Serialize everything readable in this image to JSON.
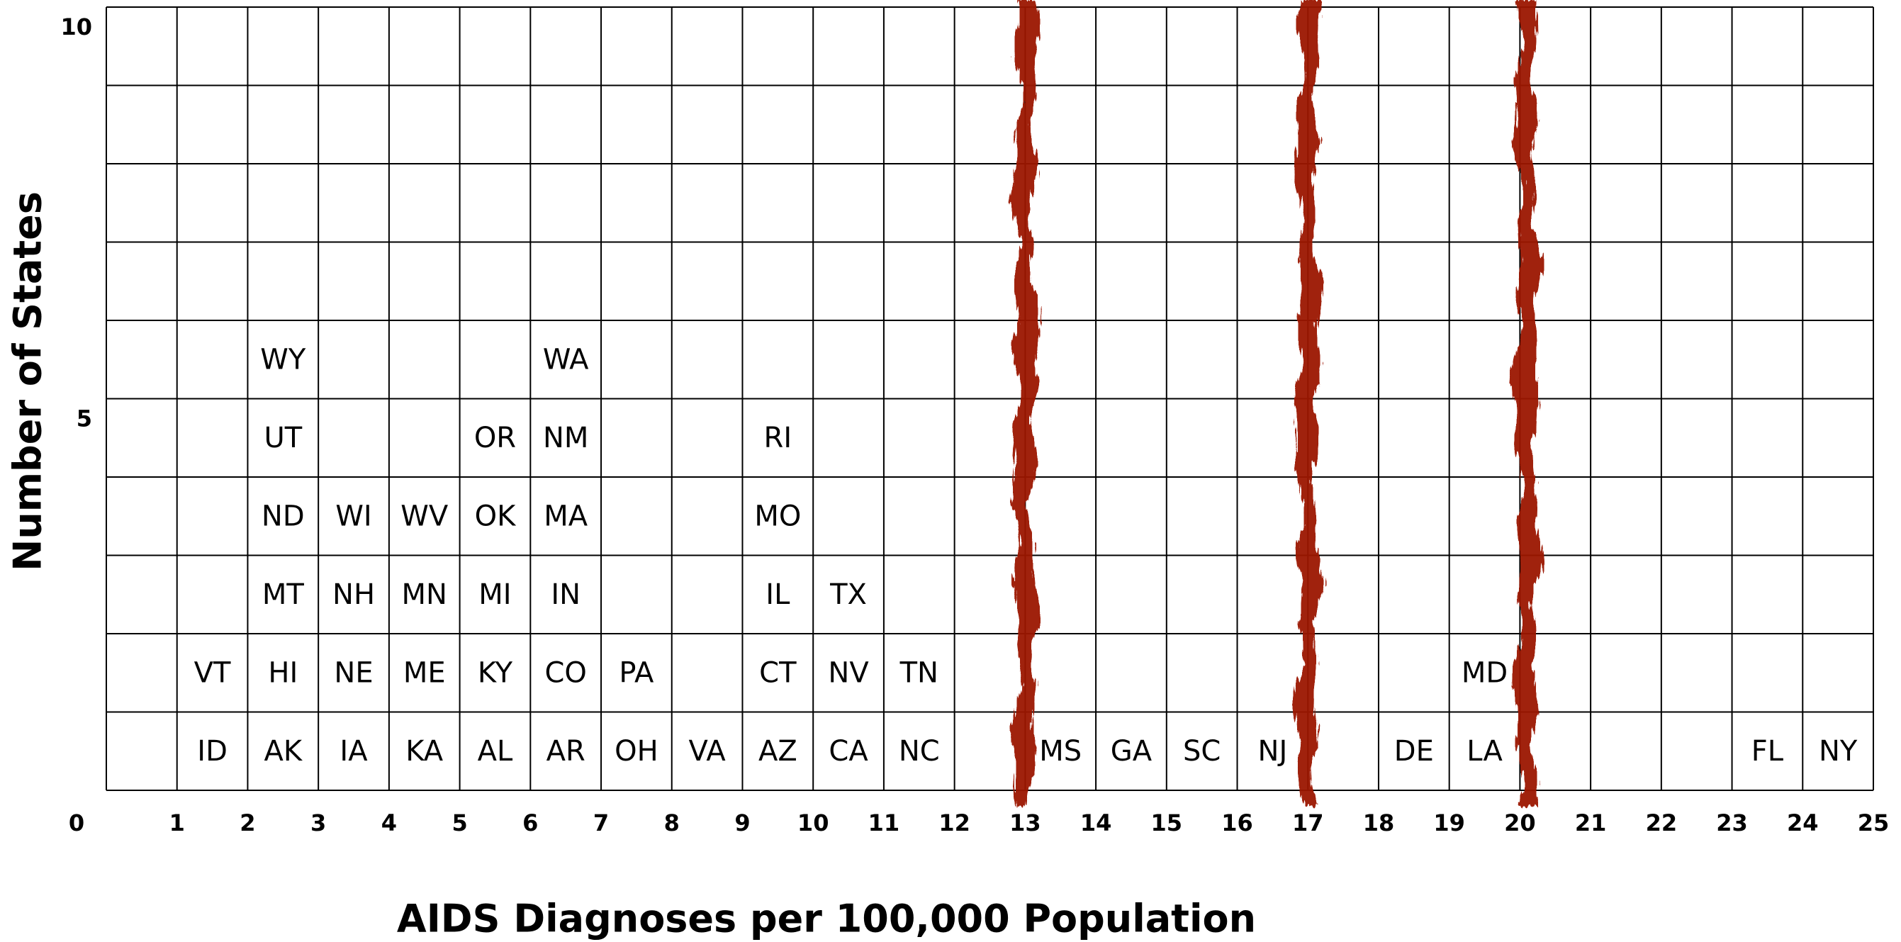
{
  "chart_data": {
    "type": "label-stack",
    "xlabel": "AIDS Diagnoses per 100,000 Population",
    "ylabel": "Number of States",
    "xlim": [
      0,
      25
    ],
    "ylim": [
      0,
      10
    ],
    "xticks": [
      0,
      1,
      2,
      3,
      4,
      5,
      6,
      7,
      8,
      9,
      10,
      11,
      12,
      13,
      14,
      15,
      16,
      17,
      18,
      19,
      20,
      21,
      22,
      23,
      24,
      25
    ],
    "yticks": [
      5,
      10
    ],
    "points": [
      {
        "label": "ID",
        "x": 1,
        "y": 1
      },
      {
        "label": "VT",
        "x": 1,
        "y": 2
      },
      {
        "label": "AK",
        "x": 2,
        "y": 1
      },
      {
        "label": "HI",
        "x": 2,
        "y": 2
      },
      {
        "label": "MT",
        "x": 2,
        "y": 3
      },
      {
        "label": "ND",
        "x": 2,
        "y": 4
      },
      {
        "label": "UT",
        "x": 2,
        "y": 5
      },
      {
        "label": "WY",
        "x": 2,
        "y": 6
      },
      {
        "label": "IA",
        "x": 3,
        "y": 1
      },
      {
        "label": "NE",
        "x": 3,
        "y": 2
      },
      {
        "label": "NH",
        "x": 3,
        "y": 3
      },
      {
        "label": "WI",
        "x": 3,
        "y": 4
      },
      {
        "label": "KA",
        "x": 4,
        "y": 1
      },
      {
        "label": "ME",
        "x": 4,
        "y": 2
      },
      {
        "label": "MN",
        "x": 4,
        "y": 3
      },
      {
        "label": "WV",
        "x": 4,
        "y": 4
      },
      {
        "label": "AL",
        "x": 5,
        "y": 1
      },
      {
        "label": "KY",
        "x": 5,
        "y": 2
      },
      {
        "label": "MI",
        "x": 5,
        "y": 3
      },
      {
        "label": "OK",
        "x": 5,
        "y": 4
      },
      {
        "label": "OR",
        "x": 5,
        "y": 5
      },
      {
        "label": "AR",
        "x": 6,
        "y": 1
      },
      {
        "label": "CO",
        "x": 6,
        "y": 2
      },
      {
        "label": "IN",
        "x": 6,
        "y": 3
      },
      {
        "label": "MA",
        "x": 6,
        "y": 4
      },
      {
        "label": "NM",
        "x": 6,
        "y": 5
      },
      {
        "label": "WA",
        "x": 6,
        "y": 6
      },
      {
        "label": "OH",
        "x": 7,
        "y": 1
      },
      {
        "label": "PA",
        "x": 7,
        "y": 2
      },
      {
        "label": "VA",
        "x": 8,
        "y": 1
      },
      {
        "label": "AZ",
        "x": 9,
        "y": 1
      },
      {
        "label": "CT",
        "x": 9,
        "y": 2
      },
      {
        "label": "IL",
        "x": 9,
        "y": 3
      },
      {
        "label": "MO",
        "x": 9,
        "y": 4
      },
      {
        "label": "RI",
        "x": 9,
        "y": 5
      },
      {
        "label": "CA",
        "x": 10,
        "y": 1
      },
      {
        "label": "NV",
        "x": 10,
        "y": 2
      },
      {
        "label": "TX",
        "x": 10,
        "y": 3
      },
      {
        "label": "NC",
        "x": 11,
        "y": 1
      },
      {
        "label": "TN",
        "x": 11,
        "y": 2
      },
      {
        "label": "MS",
        "x": 13,
        "y": 1
      },
      {
        "label": "GA",
        "x": 14,
        "y": 1
      },
      {
        "label": "SC",
        "x": 15,
        "y": 1
      },
      {
        "label": "NJ",
        "x": 16,
        "y": 1
      },
      {
        "label": "DE",
        "x": 18,
        "y": 1
      },
      {
        "label": "LA",
        "x": 19,
        "y": 1
      },
      {
        "label": "MD",
        "x": 19,
        "y": 2
      },
      {
        "label": "FL",
        "x": 23,
        "y": 1
      },
      {
        "label": "NY",
        "x": 24,
        "y": 1
      }
    ],
    "cutoffs": [
      13,
      17,
      20.1
    ],
    "cutoff_color": "#9b1400",
    "grid": true
  }
}
